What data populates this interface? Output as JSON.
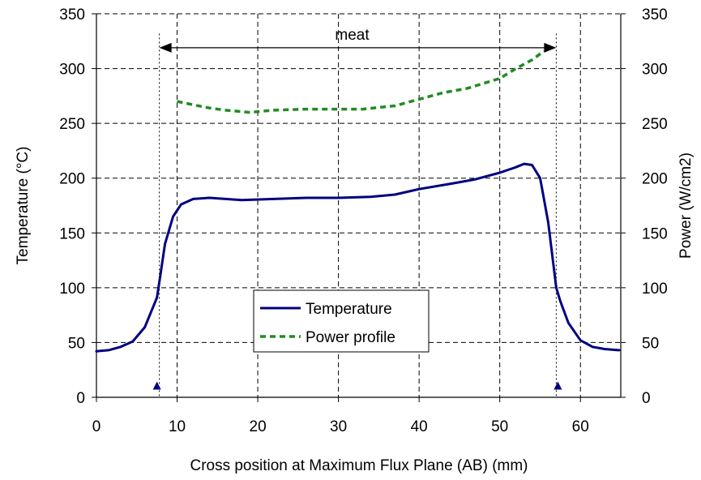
{
  "chart_data": {
    "type": "line",
    "title": "",
    "xlabel": "Cross position at Maximum Flux Plane (AB) (mm)",
    "ylabel": "Temperature (°C)",
    "y2label": "Power (W/cm2)",
    "xlim": [
      0,
      65
    ],
    "ylim": [
      0,
      350
    ],
    "y2lim": [
      0,
      350
    ],
    "x_ticks": [
      0,
      10,
      20,
      30,
      40,
      50,
      60
    ],
    "y_ticks": [
      0,
      50,
      100,
      150,
      200,
      250,
      300,
      350
    ],
    "y2_ticks": [
      0,
      50,
      100,
      150,
      200,
      250,
      300,
      350
    ],
    "grid": true,
    "legend_position": "center-left, lower half",
    "series": [
      {
        "name": "Temperature",
        "axis": "left",
        "color": "#000080",
        "style": "solid",
        "x": [
          0,
          1.5,
          3,
          4.5,
          6,
          7.5,
          7.9,
          8.5,
          9.5,
          10.5,
          12,
          14,
          18,
          22,
          26,
          30,
          34,
          37,
          40,
          44,
          47,
          50,
          52,
          53,
          54,
          55,
          56,
          56.5,
          57,
          57.5,
          58.5,
          60,
          61.5,
          63,
          64.8
        ],
        "values": [
          42,
          43,
          46,
          51,
          64,
          91,
          110,
          140,
          165,
          176,
          181,
          182,
          180,
          181,
          182,
          182,
          183,
          185,
          190,
          195,
          199,
          205,
          210,
          213,
          212,
          200,
          160,
          130,
          100,
          88,
          68,
          52,
          46,
          44,
          43
        ]
      },
      {
        "name": "Power profile",
        "axis": "right",
        "color": "#228B22",
        "style": "dashed",
        "x": [
          10,
          12,
          14,
          16,
          19,
          22,
          26,
          30,
          33,
          37,
          40,
          43,
          46,
          50,
          52,
          54,
          55.5
        ],
        "values": [
          270,
          267,
          264,
          262,
          260,
          262,
          263,
          263,
          263,
          266,
          272,
          278,
          282,
          291,
          300,
          308,
          316
        ]
      }
    ],
    "annotations": {
      "span_label": "meat",
      "span_start": 7.8,
      "span_end": 57,
      "span_y": 319,
      "markers_x": [
        7.5,
        57.2
      ],
      "marker_y": 10,
      "marker_color": "#000080"
    }
  }
}
